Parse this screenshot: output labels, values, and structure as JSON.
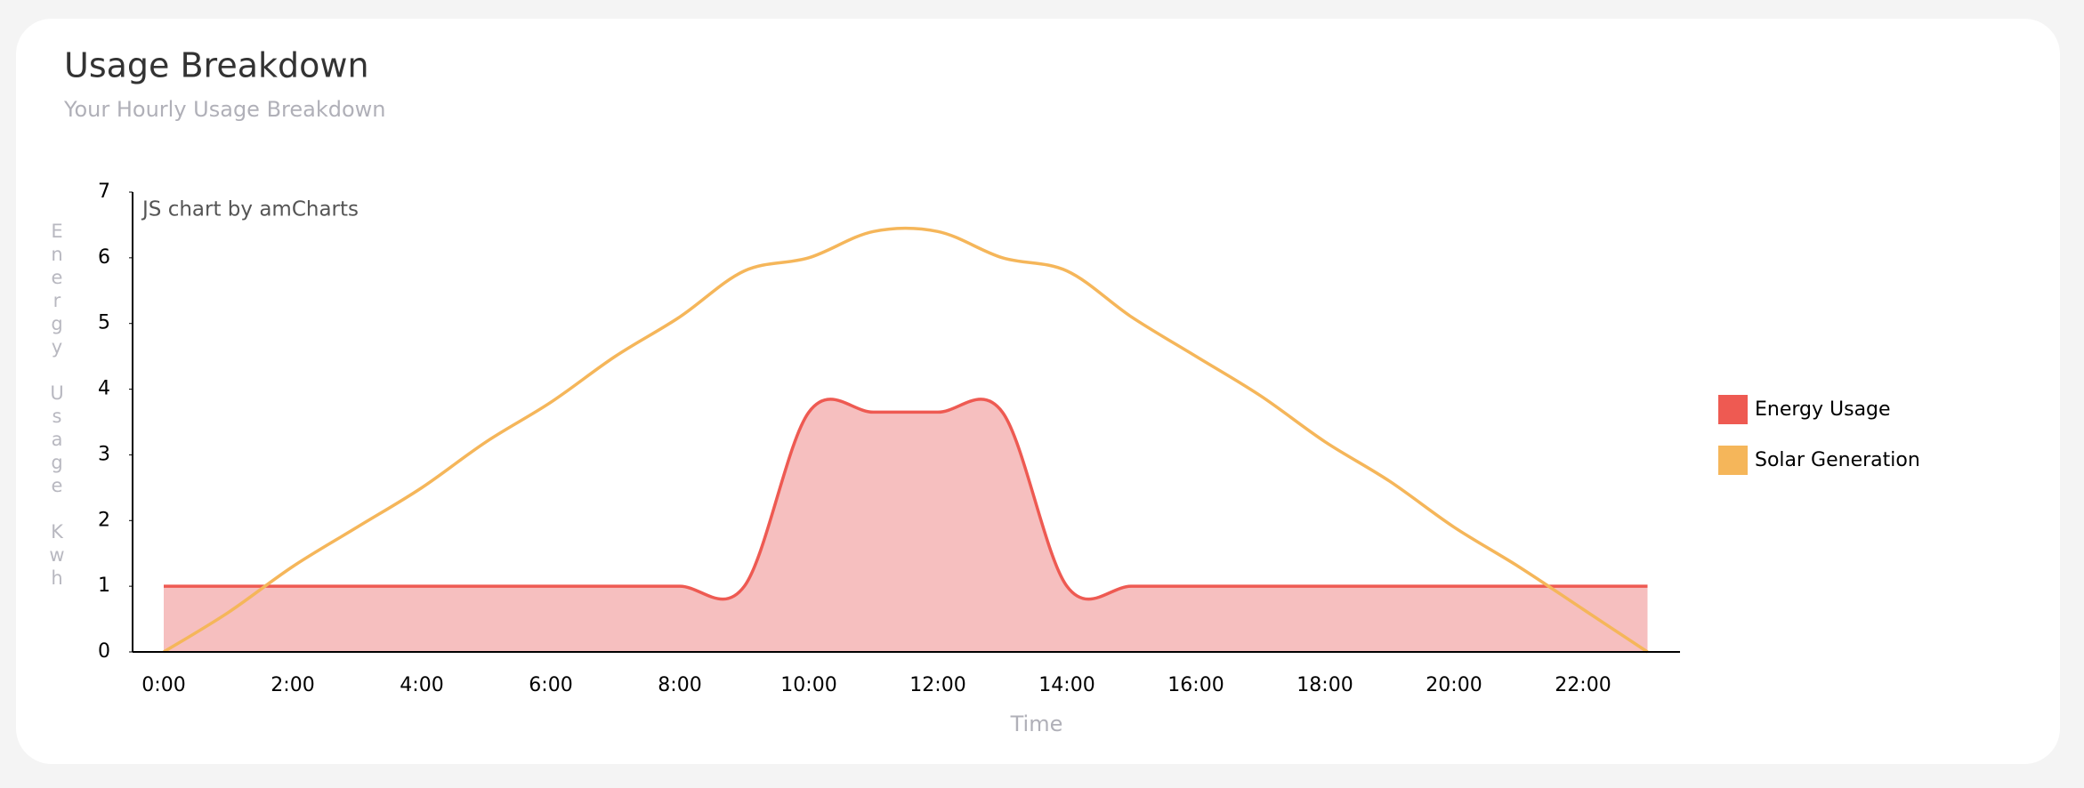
{
  "title": "Usage Breakdown",
  "subtitle": "Your Hourly Usage Breakdown",
  "chart_data": {
    "type": "line",
    "watermark": "JS chart by amCharts",
    "x_label": "Time",
    "y_label": "Energy Usage Kwh",
    "categories": [
      "0:00",
      null,
      "2:00",
      null,
      "4:00",
      null,
      "6:00",
      null,
      "8:00",
      null,
      "10:00",
      null,
      "12:00",
      null,
      "14:00",
      null,
      "16:00",
      null,
      "18:00",
      null,
      "20:00",
      null,
      "22:00",
      null
    ],
    "ylim": [
      0,
      7
    ],
    "yticks": [
      0,
      1,
      2,
      3,
      4,
      5,
      6,
      7
    ],
    "legend": "right",
    "series": [
      {
        "name": "Energy Usage",
        "color": "#ee5a52",
        "fill": "#f6bfbf",
        "area": true,
        "values": [
          1,
          1,
          1,
          1,
          1,
          1,
          1,
          1,
          1,
          1,
          3.65,
          3.65,
          3.65,
          3.65,
          1,
          1,
          1,
          1,
          1,
          1,
          1,
          1,
          1,
          1
        ]
      },
      {
        "name": "Solar Generation",
        "color": "#f5b65a",
        "area": false,
        "values": [
          0,
          0.6,
          1.3,
          1.9,
          2.5,
          3.2,
          3.8,
          4.5,
          5.1,
          5.8,
          6.0,
          6.4,
          6.4,
          6.0,
          5.8,
          5.1,
          4.5,
          3.9,
          3.2,
          2.6,
          1.9,
          1.3,
          0.65,
          0
        ]
      }
    ]
  }
}
